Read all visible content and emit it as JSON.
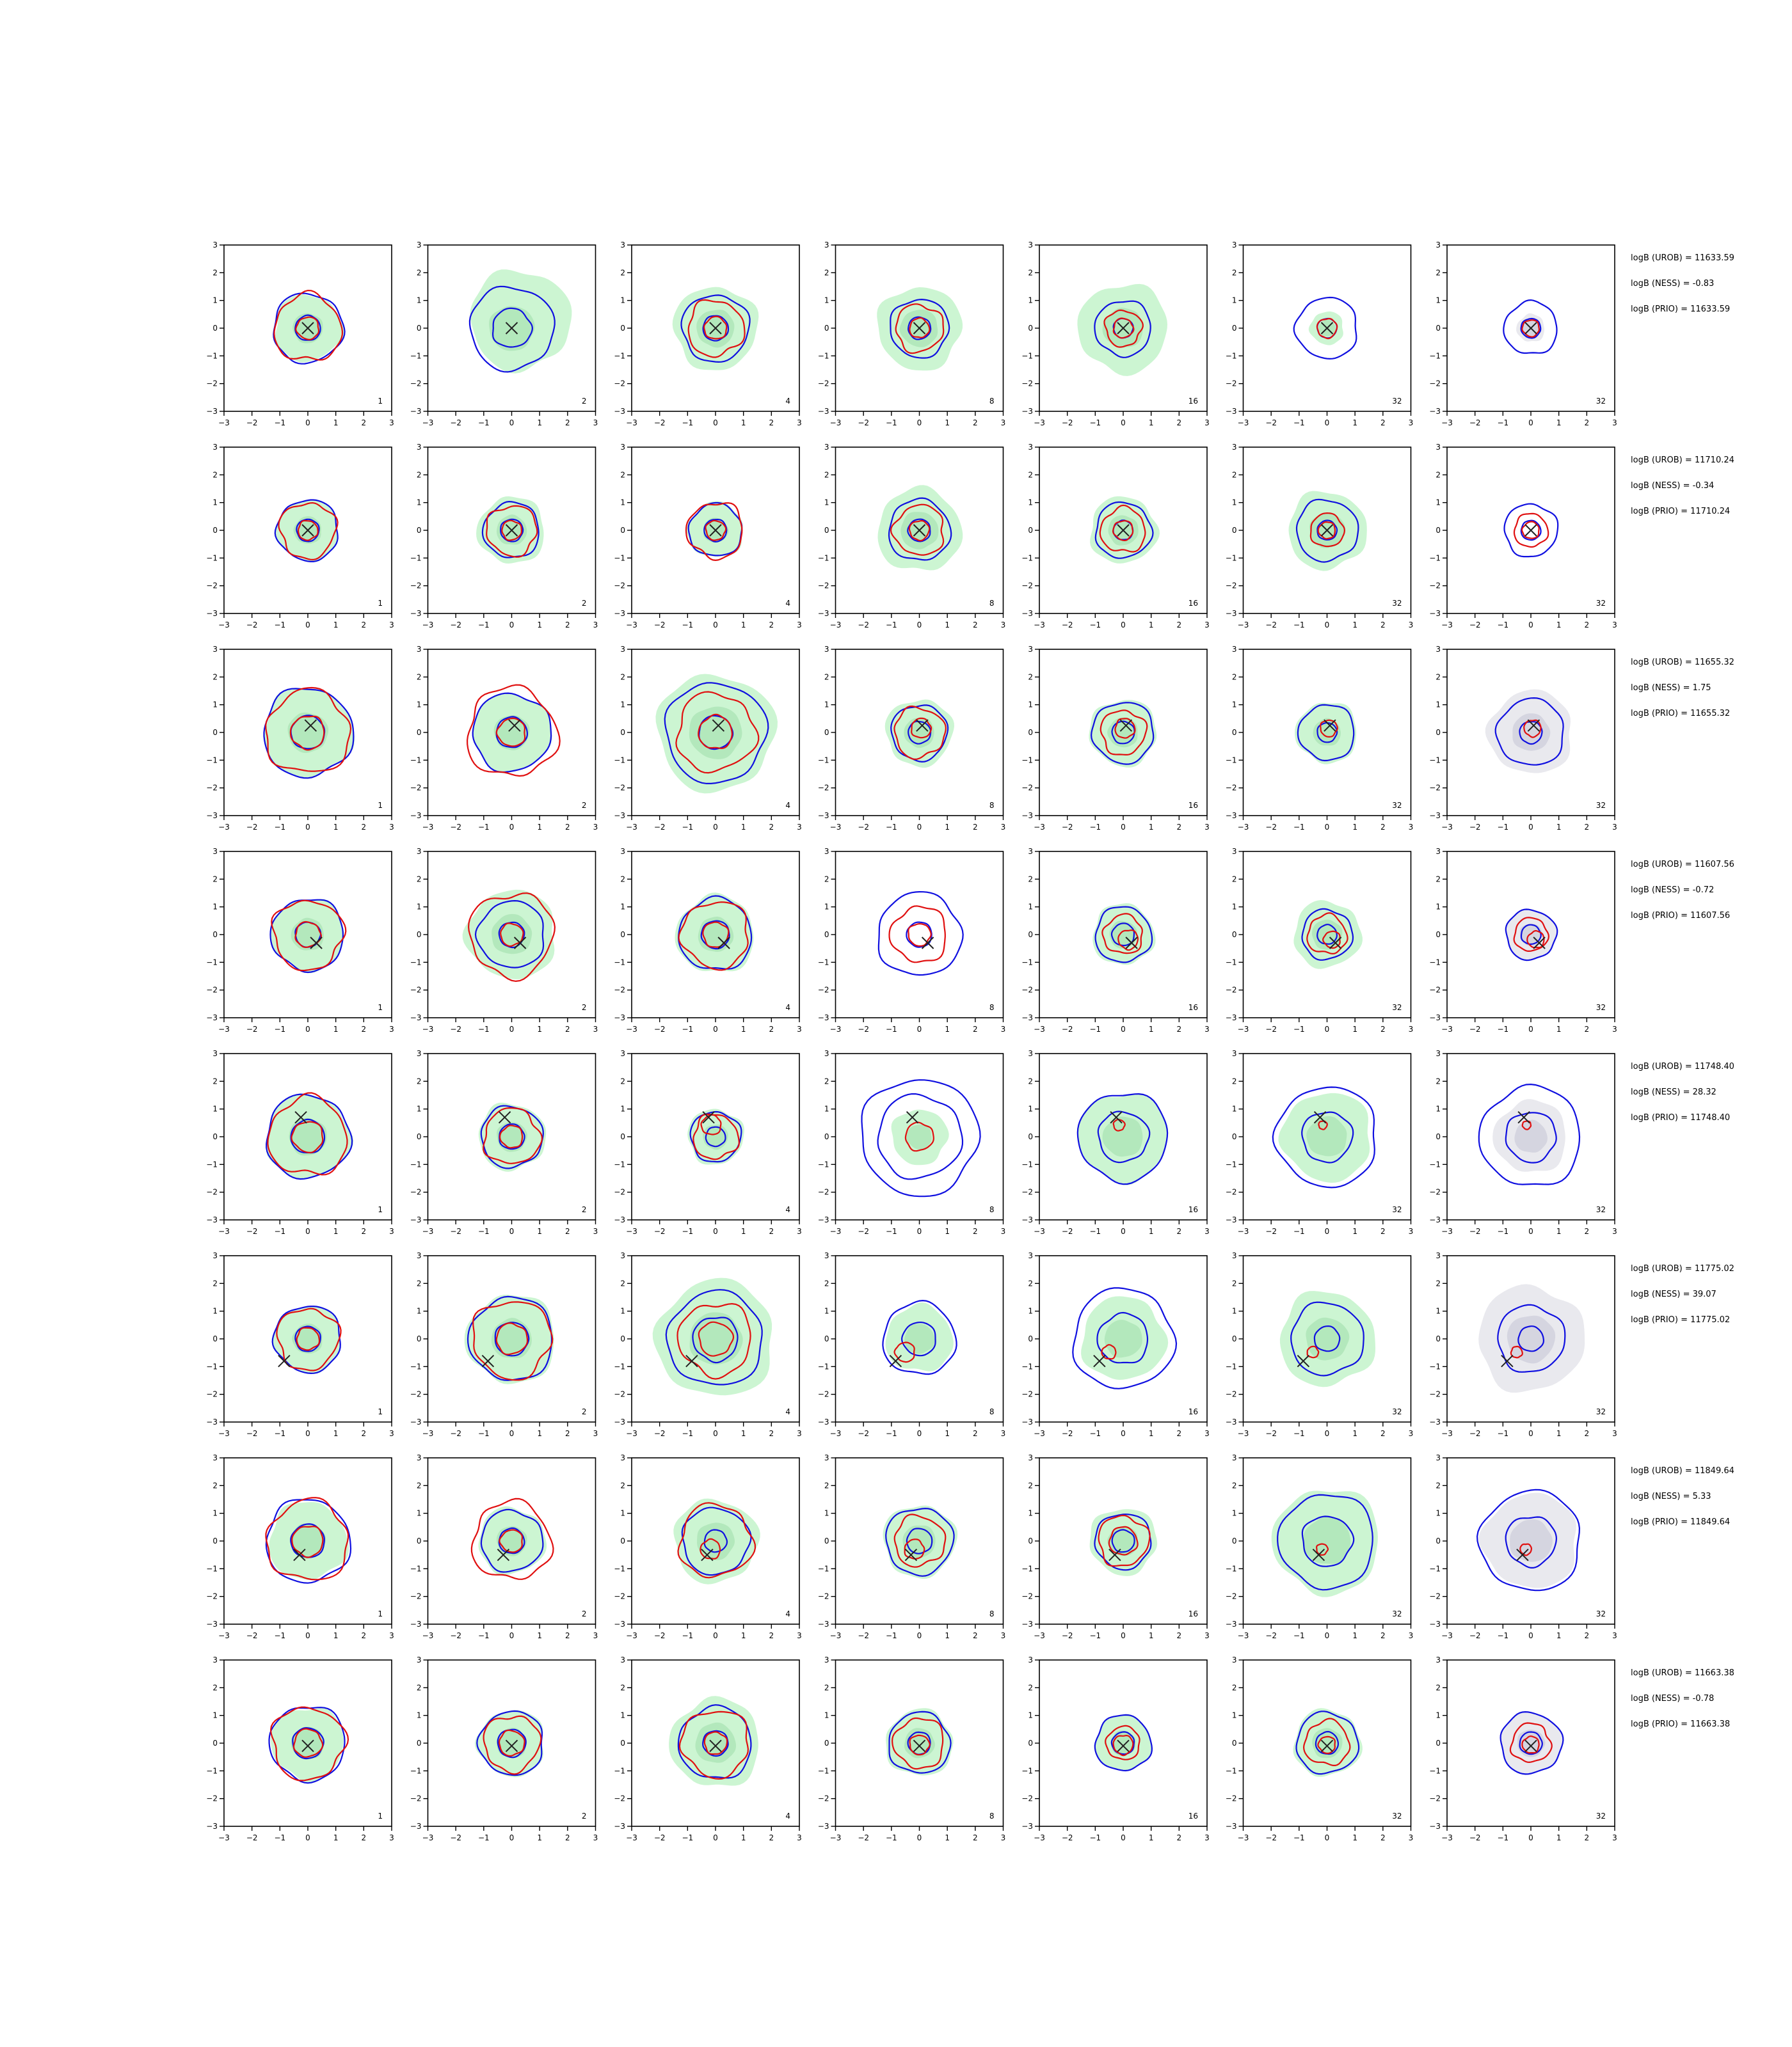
{
  "figure": {
    "rows": 8,
    "cols": 7,
    "panel_footer_labels": [
      "1",
      "2",
      "4",
      "8",
      "16",
      "32",
      "32"
    ],
    "axis": {
      "xlim": [
        -3,
        3
      ],
      "ylim": [
        -3,
        3
      ],
      "ticks": [
        -3,
        -2,
        -1,
        0,
        1,
        2,
        3
      ],
      "tick_labels": [
        "−3",
        "−2",
        "−1",
        "0",
        "1",
        "2",
        "3"
      ]
    },
    "colors": {
      "green_fill": "#ccf5d2",
      "green_inner": "#b3e8bc",
      "grey_fill": "#e9e9ee",
      "grey_inner": "#d5d5e0",
      "blue_line": "#1010e0",
      "red_line": "#e01010",
      "marker": "#222222"
    }
  },
  "chart_data": {
    "type": "contour",
    "description_of_series": [
      "green shaded density",
      "blue contour",
      "red contour",
      "true value marker (x)"
    ],
    "rows": [
      {
        "annotations": [
          "logB (UROB) = 11633.59",
          "logB (NESS) = -0.83",
          "logB (PRIO) = 11633.59"
        ],
        "marker": [
          0.0,
          0.0
        ],
        "panels": [
          {
            "label": "1",
            "fill": "green",
            "fill_r": 1.2,
            "blue": [
              1.25,
              0.45
            ],
            "red": [
              1.2,
              0.4
            ]
          },
          {
            "label": "2",
            "fill": "green",
            "fill_r": 1.8,
            "fill_dx": 0.6,
            "fill_dy": 0.6,
            "blue": [
              1.5,
              0.7
            ],
            "red": []
          },
          {
            "label": "4",
            "fill": "green",
            "fill_r": 1.5,
            "blue": [
              1.2,
              0.45
            ],
            "red": [
              1.0,
              0.4
            ]
          },
          {
            "label": "8",
            "fill": "green",
            "fill_r": 1.5,
            "blue": [
              1.05,
              0.4
            ],
            "red": [
              0.85,
              0.35
            ]
          },
          {
            "label": "16",
            "fill": "green",
            "fill_r": 1.6,
            "blue": [
              1.0,
              0.35
            ],
            "red": [
              0.65,
              0.35
            ]
          },
          {
            "label": "32",
            "fill": "green",
            "fill_r": 0.6,
            "blue": [
              1.1,
              0.35
            ],
            "red": [
              0.35
            ]
          },
          {
            "label": "32",
            "fill": "grey",
            "fill_r": 0.5,
            "blue": [
              0.95,
              0.35
            ],
            "red": [
              0.3
            ]
          }
        ]
      },
      {
        "annotations": [
          "logB (UROB) = 11710.24",
          "logB (NESS) = -0.34",
          "logB (PRIO) = 11710.24"
        ],
        "marker": [
          0.0,
          0.0
        ],
        "panels": [
          {
            "label": "1",
            "fill": "green",
            "fill_r": 1.1,
            "blue": [
              1.1,
              0.4
            ],
            "red": [
              1.0,
              0.35
            ]
          },
          {
            "label": "2",
            "fill": "green",
            "fill_r": 1.2,
            "blue": [
              1.0,
              0.4
            ],
            "red": [
              0.9,
              0.35
            ]
          },
          {
            "label": "4",
            "fill": "green",
            "fill_r": 1.0,
            "blue": [
              0.95,
              0.4
            ],
            "red": [
              1.0,
              0.35
            ]
          },
          {
            "label": "8",
            "fill": "green",
            "fill_r": 1.5,
            "blue": [
              1.1,
              0.4
            ],
            "red": [
              0.9,
              0.35
            ]
          },
          {
            "label": "16",
            "fill": "green",
            "fill_r": 1.2,
            "blue": [
              1.0,
              0.35
            ],
            "red": [
              0.8,
              0.35
            ]
          },
          {
            "label": "32",
            "fill": "green",
            "fill_r": 1.4,
            "blue": [
              1.1,
              0.35
            ],
            "red": [
              0.6,
              0.3
            ]
          },
          {
            "label": "32",
            "fill": "none",
            "fill_r": 0.0,
            "blue": [
              0.95,
              0.35
            ],
            "red": [
              0.6,
              0.3
            ]
          }
        ]
      },
      {
        "annotations": [
          "logB (UROB) = 11655.32",
          "logB (NESS) = 1.75",
          "logB (PRIO) = 11655.32"
        ],
        "marker": [
          0.1,
          0.25
        ],
        "panels": [
          {
            "label": "1",
            "fill": "green",
            "fill_r": 1.6,
            "blue": [
              1.6,
              0.6
            ],
            "red": [
              1.5,
              0.6
            ]
          },
          {
            "label": "2",
            "fill": "green",
            "fill_r": 1.4,
            "blue": [
              1.4,
              0.55
            ],
            "red": [
              1.6,
              0.5
            ]
          },
          {
            "label": "4",
            "fill": "green",
            "fill_r": 2.1,
            "blue": [
              1.8,
              0.6
            ],
            "red": [
              1.4,
              0.6
            ]
          },
          {
            "label": "8",
            "fill": "green",
            "fill_r": 1.2,
            "blue": [
              1.0,
              0.4
            ],
            "red": [
              0.9,
              0.35
            ]
          },
          {
            "label": "16",
            "fill": "green",
            "fill_r": 1.2,
            "blue": [
              1.1,
              0.4
            ],
            "red": [
              0.8,
              0.35
            ]
          },
          {
            "label": "32",
            "fill": "green",
            "fill_r": 1.1,
            "blue": [
              1.0,
              0.35
            ],
            "red": [
              0.3
            ]
          },
          {
            "label": "32",
            "fill": "grey",
            "fill_r": 1.5,
            "blue": [
              1.2,
              0.4
            ],
            "red": [
              0.3
            ]
          }
        ]
      },
      {
        "annotations": [
          "logB (UROB) = 11607.56",
          "logB (NESS) = -0.72",
          "logB (PRIO) = 11607.56"
        ],
        "marker": [
          0.3,
          -0.3
        ],
        "panels": [
          {
            "label": "1",
            "fill": "green",
            "fill_r": 1.3,
            "blue": [
              1.3,
              0.45
            ],
            "red": [
              1.25,
              0.45
            ]
          },
          {
            "label": "2",
            "fill": "green",
            "fill_r": 1.6,
            "blue": [
              1.2,
              0.45
            ],
            "red": [
              1.5,
              0.4
            ]
          },
          {
            "label": "4",
            "fill": "green",
            "fill_r": 1.4,
            "blue": [
              1.3,
              0.5
            ],
            "red": [
              1.2,
              0.45
            ]
          },
          {
            "label": "8",
            "fill": "none",
            "fill_r": 0.0,
            "blue": [
              1.5,
              0.45
            ],
            "red": [
              1.0,
              0.4
            ]
          },
          {
            "label": "16",
            "fill": "green",
            "fill_r": 1.1,
            "blue": [
              1.0,
              0.4
            ],
            "red": [
              0.7,
              0.35
            ]
          },
          {
            "label": "32",
            "fill": "green",
            "fill_r": 1.2,
            "blue": [
              0.9,
              0.35
            ],
            "red": [
              0.7,
              0.3
            ]
          },
          {
            "label": "32",
            "fill": "grey",
            "fill_r": 0.9,
            "blue": [
              0.9,
              0.35
            ],
            "red": [
              0.6,
              0.3
            ]
          }
        ]
      },
      {
        "annotations": [
          "logB (UROB) = 11748.40",
          "logB (NESS) = 28.32",
          "logB (PRIO) = 11748.40"
        ],
        "marker": [
          -0.25,
          0.7
        ],
        "panels": [
          {
            "label": "1",
            "fill": "green",
            "fill_r": 1.5,
            "blue": [
              1.5,
              0.6
            ],
            "red": [
              1.4,
              0.55
            ]
          },
          {
            "label": "2",
            "fill": "green",
            "fill_r": 1.2,
            "blue": [
              1.1,
              0.45
            ],
            "red": [
              1.0,
              0.4
            ]
          },
          {
            "label": "4",
            "fill": "green",
            "fill_r": 1.0,
            "blue": [
              0.9,
              0.35
            ],
            "red": [
              0.8,
              0.35
            ]
          },
          {
            "label": "8",
            "fill": "green",
            "fill_r": 1.0,
            "blue": [
              2.1,
              1.5
            ],
            "red": [
              0.5
            ]
          },
          {
            "label": "16",
            "fill": "green",
            "fill_r": 1.6,
            "blue": [
              1.6,
              0.9
            ],
            "red": [
              0.2
            ]
          },
          {
            "label": "32",
            "fill": "green",
            "fill_r": 1.6,
            "blue": [
              1.8,
              0.9
            ],
            "red": [
              0.15
            ]
          },
          {
            "label": "32",
            "fill": "grey",
            "fill_r": 1.3,
            "blue": [
              1.8,
              0.9
            ],
            "red": [
              0.15
            ]
          }
        ]
      },
      {
        "annotations": [
          "logB (UROB) = 11775.02",
          "logB (NESS) = 39.07",
          "logB (PRIO) = 11775.02"
        ],
        "marker": [
          -0.85,
          -0.8
        ],
        "panels": [
          {
            "label": "1",
            "fill": "green",
            "fill_r": 1.2,
            "blue": [
              1.2,
              0.45
            ],
            "red": [
              1.1,
              0.4
            ]
          },
          {
            "label": "2",
            "fill": "green",
            "fill_r": 1.6,
            "blue": [
              1.5,
              0.6
            ],
            "red": [
              1.4,
              0.55
            ]
          },
          {
            "label": "4",
            "fill": "green",
            "fill_r": 2.1,
            "blue": [
              1.7,
              0.8
            ],
            "red": [
              1.3,
              0.6
            ]
          },
          {
            "label": "8",
            "fill": "green",
            "fill_r": 1.2,
            "blue": [
              1.3,
              0.6
            ],
            "red": [
              0.35
            ]
          },
          {
            "label": "16",
            "fill": "green",
            "fill_r": 1.5,
            "blue": [
              1.8,
              0.9
            ],
            "red": [
              0.25
            ]
          },
          {
            "label": "32",
            "fill": "green",
            "fill_r": 1.7,
            "blue": [
              1.3,
              0.45
            ],
            "red": [
              0.2
            ]
          },
          {
            "label": "32",
            "fill": "grey",
            "fill_r": 1.9,
            "blue": [
              1.2,
              0.45
            ],
            "red": [
              0.2
            ]
          }
        ]
      },
      {
        "annotations": [
          "logB (UROB) = 11849.64",
          "logB (NESS) = 5.33",
          "logB (PRIO) = 11849.64"
        ],
        "marker": [
          -0.3,
          -0.5
        ],
        "panels": [
          {
            "label": "1",
            "fill": "green",
            "fill_r": 1.4,
            "blue": [
              1.5,
              0.6
            ],
            "red": [
              1.45,
              0.55
            ]
          },
          {
            "label": "2",
            "fill": "green",
            "fill_r": 1.2,
            "blue": [
              1.1,
              0.45
            ],
            "red": [
              1.4,
              0.4
            ]
          },
          {
            "label": "4",
            "fill": "green",
            "fill_r": 1.5,
            "blue": [
              1.2,
              0.4
            ],
            "red": [
              1.3,
              0.35
            ]
          },
          {
            "label": "8",
            "fill": "green",
            "fill_r": 1.3,
            "blue": [
              1.2,
              0.45
            ],
            "red": [
              0.9,
              0.35
            ]
          },
          {
            "label": "16",
            "fill": "green",
            "fill_r": 1.2,
            "blue": [
              1.0,
              0.4
            ],
            "red": [
              0.9,
              0.5
            ]
          },
          {
            "label": "32",
            "fill": "green",
            "fill_r": 1.9,
            "blue": [
              1.7,
              0.9
            ],
            "red": [
              0.2
            ]
          },
          {
            "label": "32",
            "fill": "grey",
            "fill_r": 1.7,
            "blue": [
              1.8,
              0.9
            ],
            "red": [
              0.2
            ]
          }
        ]
      },
      {
        "annotations": [
          "logB (UROB) = 11663.38",
          "logB (NESS) = -0.78",
          "logB (PRIO) = 11663.38"
        ],
        "marker": [
          0.0,
          -0.1
        ],
        "panels": [
          {
            "label": "1",
            "fill": "green",
            "fill_r": 1.3,
            "blue": [
              1.35,
              0.55
            ],
            "red": [
              1.3,
              0.5
            ]
          },
          {
            "label": "2",
            "fill": "green",
            "fill_r": 1.2,
            "blue": [
              1.15,
              0.5
            ],
            "red": [
              1.0,
              0.45
            ]
          },
          {
            "label": "4",
            "fill": "green",
            "fill_r": 1.6,
            "blue": [
              1.3,
              0.45
            ],
            "red": [
              1.2,
              0.4
            ]
          },
          {
            "label": "8",
            "fill": "green",
            "fill_r": 1.2,
            "blue": [
              1.1,
              0.4
            ],
            "red": [
              0.9,
              0.35
            ]
          },
          {
            "label": "16",
            "fill": "green",
            "fill_r": 1.0,
            "blue": [
              1.0,
              0.4
            ],
            "red": [
              0.6,
              0.35
            ]
          },
          {
            "label": "32",
            "fill": "green",
            "fill_r": 1.2,
            "blue": [
              1.1,
              0.4
            ],
            "red": [
              0.8,
              0.3
            ]
          },
          {
            "label": "32",
            "fill": "grey",
            "fill_r": 1.1,
            "blue": [
              1.1,
              0.4
            ],
            "red": [
              0.7,
              0.3
            ]
          }
        ]
      }
    ]
  }
}
